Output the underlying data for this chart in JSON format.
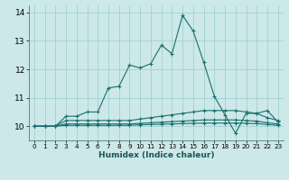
{
  "xlabel": "Humidex (Indice chaleur)",
  "background_color": "#cce8e8",
  "grid_color": "#99cccc",
  "line_color": "#1a6e6e",
  "x_values": [
    0,
    1,
    2,
    3,
    4,
    5,
    6,
    7,
    8,
    9,
    10,
    11,
    12,
    13,
    14,
    15,
    16,
    17,
    18,
    19,
    20,
    21,
    22,
    23
  ],
  "series1": [
    10.0,
    10.0,
    10.0,
    10.35,
    10.35,
    10.5,
    10.5,
    11.35,
    11.4,
    12.15,
    12.05,
    12.2,
    12.85,
    12.55,
    13.9,
    13.35,
    12.25,
    11.05,
    10.4,
    9.75,
    10.45,
    10.45,
    10.55,
    10.15
  ],
  "series2": [
    10.0,
    10.0,
    10.0,
    10.2,
    10.2,
    10.2,
    10.2,
    10.2,
    10.2,
    10.2,
    10.25,
    10.3,
    10.35,
    10.4,
    10.45,
    10.5,
    10.55,
    10.55,
    10.55,
    10.55,
    10.5,
    10.45,
    10.3,
    10.2
  ],
  "series3": [
    10.0,
    10.0,
    10.0,
    10.08,
    10.08,
    10.08,
    10.08,
    10.08,
    10.08,
    10.08,
    10.1,
    10.12,
    10.14,
    10.16,
    10.18,
    10.2,
    10.22,
    10.22,
    10.22,
    10.22,
    10.2,
    10.18,
    10.12,
    10.08
  ],
  "series4": [
    10.0,
    10.0,
    10.0,
    10.03,
    10.03,
    10.03,
    10.03,
    10.03,
    10.03,
    10.03,
    10.05,
    10.06,
    10.07,
    10.08,
    10.09,
    10.1,
    10.11,
    10.11,
    10.11,
    10.11,
    10.1,
    10.09,
    10.06,
    10.03
  ],
  "ylim": [
    9.5,
    14.25
  ],
  "yticks": [
    10,
    11,
    12,
    13,
    14
  ],
  "xlim": [
    -0.5,
    23.5
  ],
  "figwidth": 3.2,
  "figheight": 2.0,
  "dpi": 100
}
